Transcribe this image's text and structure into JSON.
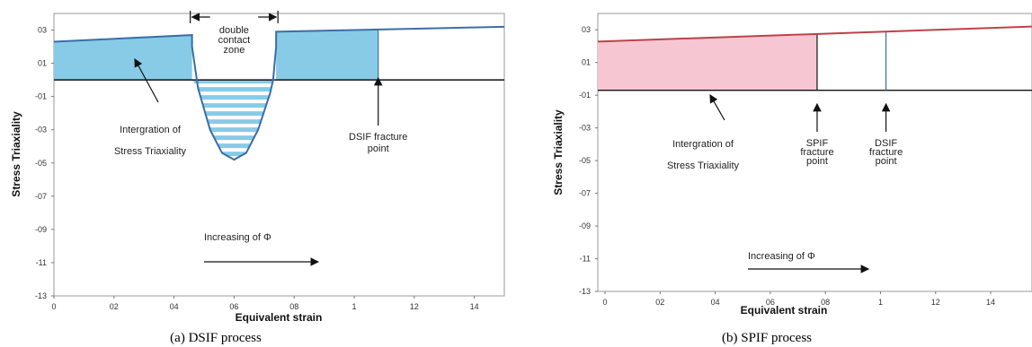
{
  "chart_data": [
    {
      "type": "area",
      "caption": "(a) DSIF process",
      "xlabel": "Equivalent strain",
      "ylabel": "Stress Triaxiality",
      "xlim": [
        0,
        1.5
      ],
      "ylim": [
        -1.3,
        0.4
      ],
      "x_ticks": [
        "0",
        "02",
        "04",
        "06",
        "08",
        "1",
        "12",
        "14"
      ],
      "x_tick_values": [
        0,
        0.2,
        0.4,
        0.6,
        0.8,
        1.0,
        1.2,
        1.4
      ],
      "y_ticks": [
        "03",
        "01",
        "-01",
        "-03",
        "-05",
        "-07",
        "-09",
        "-11",
        "-13"
      ],
      "y_tick_values": [
        0.3,
        0.1,
        -0.1,
        -0.3,
        -0.5,
        -0.7,
        -0.9,
        -1.1,
        -1.3
      ],
      "series": [
        {
          "x": [
            0,
            0.46,
            0.46,
            0.48,
            0.52,
            0.56,
            0.6,
            0.64,
            0.68,
            0.72,
            0.73,
            0.74,
            0.74,
            1.0,
            1.5
          ],
          "y": [
            0.23,
            0.27,
            0.2,
            -0.05,
            -0.3,
            -0.44,
            -0.48,
            -0.44,
            -0.3,
            -0.08,
            0.0,
            0.2,
            0.29,
            0.3,
            0.32
          ]
        }
      ],
      "zero_line": 0.0,
      "fracture_x": 1.08,
      "contact_zone": [
        0.46,
        0.74
      ],
      "annotations": {
        "double_contact": [
          "double",
          "contact",
          "zone"
        ],
        "integration": [
          "Intergration of",
          "Stress Triaxiality"
        ],
        "dsif_fracture": [
          "DSIF fracture",
          "point"
        ],
        "increasing": "Increasing of Φ"
      },
      "colors": {
        "line": "#3a6ea8",
        "fill": "#87cbe6",
        "stripe": "#ffffff"
      }
    },
    {
      "type": "area",
      "caption": "(b) SPIF process",
      "xlabel": "Equivalent strain",
      "ylabel": "Stress Triaxiality",
      "xlim": [
        0,
        1.5
      ],
      "ylim": [
        -1.3,
        0.4
      ],
      "x_ticks": [
        "0",
        "02",
        "04",
        "06",
        "08",
        "1",
        "12",
        "14"
      ],
      "x_tick_values": [
        0,
        0.2,
        0.4,
        0.6,
        0.8,
        1.0,
        1.2,
        1.4
      ],
      "y_ticks": [
        "03",
        "01",
        "-01",
        "-03",
        "-05",
        "-07",
        "-09",
        "-11",
        "-13"
      ],
      "y_tick_values": [
        0.3,
        0.1,
        -0.1,
        -0.3,
        -0.5,
        -0.7,
        -0.9,
        -1.1,
        -1.3
      ],
      "series": [
        {
          "x": [
            0,
            1.5
          ],
          "y": [
            0.23,
            0.32
          ]
        }
      ],
      "zero_line": -0.07,
      "spif_fracture_x": 0.77,
      "dsif_fracture_x": 1.02,
      "annotations": {
        "integration": [
          "Intergration of",
          "Stress Triaxiality"
        ],
        "spif_fracture": [
          "SPIF",
          "fracture",
          "point"
        ],
        "dsif_fracture": [
          "DSIF",
          "fracture",
          "point"
        ],
        "increasing": "Increasing of Φ"
      },
      "colors": {
        "line": "#c0404a",
        "fill": "#f7c6d3"
      }
    }
  ]
}
